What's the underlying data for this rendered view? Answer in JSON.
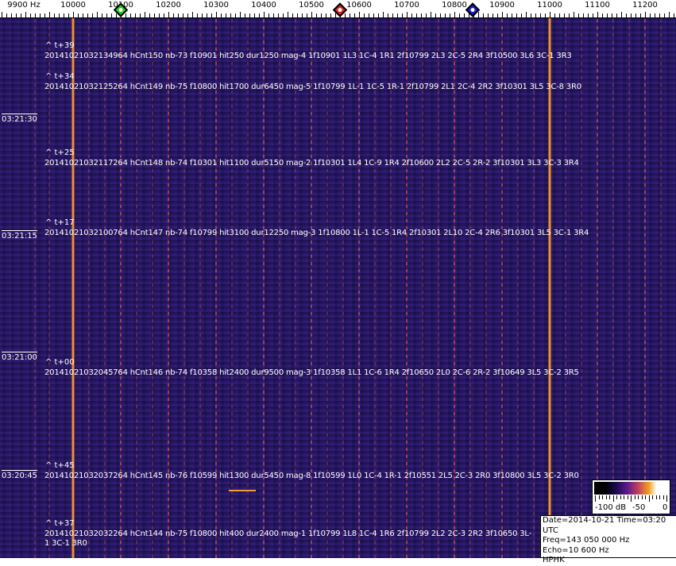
{
  "ruler": {
    "unit_label": "9900 Hz",
    "freq_labels": [
      "10000",
      "10100",
      "10200",
      "10300",
      "10400",
      "10500",
      "10600",
      "10700",
      "10800",
      "10900",
      "11000",
      "11100",
      "11200"
    ],
    "markers": [
      {
        "name": "green-marker",
        "color": "#22cc22",
        "freq_hz": 10100
      },
      {
        "name": "red-marker",
        "color": "#dd2222",
        "freq_hz": 10560
      },
      {
        "name": "blue-marker",
        "color": "#1a1acc",
        "freq_hz": 10838
      }
    ]
  },
  "spectrogram": {
    "background_color": "#2b1c6e",
    "strong_signal_color": "#f0902a",
    "strong_carriers_hz": [
      10000,
      11000
    ],
    "time_labels": [
      "03:21:30",
      "03:21:15",
      "03:21:00",
      "03:20:45"
    ],
    "detections": [
      {
        "tag": "^ t+39",
        "text": "20141021032134964 hCnt150 nb-73 f10901 hit250 dur1250 mag-4 1f10901 1L3 1C-4 1R1 2f10799 2L3 2C-5 2R4 3f10500 3L6 3C-1 3R3"
      },
      {
        "tag": "^ t+34",
        "text": "20141021032125264 hCnt149 nb-75 f10800 hit1700 dur6450 mag-5 1f10799 1L-1 1C-5 1R-1 2f10799 2L1 2C-4 2R2 3f10301 3L5 3C-8 3R0"
      },
      {
        "tag": "^ t+25",
        "text": "20141021032117264 hCnt148 nb-74 f10301 hit1100 dur5150 mag-2 1f10301 1L4 1C-9 1R4 2f10600 2L2 2C-5 2R-2 3f10301 3L3 3C-3 3R4"
      },
      {
        "tag": "^ t+17",
        "text": "20141021032100764 hCnt147 nb-74 f10799 hit3100 dur12250 mag-3 1f10800 1L-1 1C-5 1R4 2f10301 2L10 2C-4 2R6 3f10301 3L5 3C-1 3R4"
      },
      {
        "tag": "^ t+00",
        "text": "20141021032045764 hCnt146 nb-74 f10358 hit2400 dur9500 mag-3 1f10358 1L1 1C-6 1R4 2f10650 2L0 2C-6 2R-2 3f10649 3L5 3C-2 3R5"
      },
      {
        "tag": "^ t+45",
        "text": "20141021032037264 hCnt145 nb-76 f10599 hit1300 dur5450 mag-8 1f10599 1L0 1C-4 1R-1 2f10551 2L5 2C-3 2R0 3f10800 3L5 3C-2 3R0"
      },
      {
        "tag": "^ t+37",
        "text": "20141021032032264 hCnt144 nb-75 f10800 hit400 dur2400 mag-1 1f10799 1L8 1C-4 1R6 2f10799 2L2 2C-3 2R2 3f10650 3L-1 3C-1 3R0"
      }
    ]
  },
  "legend": {
    "label_min": "-100 dB",
    "label_mid": "-50",
    "label_max": "0"
  },
  "info": {
    "date_time": "Date=2014-10-21 Time=03:20 UTC",
    "freq": "Freq=143 050 000 Hz",
    "echo": "Echo=10 600 Hz",
    "station": "HPHK"
  }
}
